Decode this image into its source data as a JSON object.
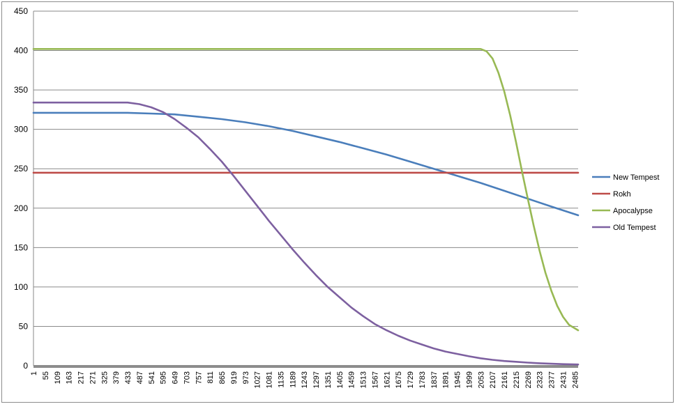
{
  "chart_data": {
    "type": "line",
    "title": "",
    "xlabel": "",
    "ylabel": "",
    "ylim": [
      0,
      450
    ],
    "xlim": [
      1,
      2500
    ],
    "yticks": [
      0,
      50,
      100,
      150,
      200,
      250,
      300,
      350,
      400,
      450
    ],
    "xticks": [
      1,
      55,
      109,
      163,
      217,
      271,
      325,
      379,
      433,
      487,
      541,
      595,
      649,
      703,
      757,
      811,
      865,
      919,
      973,
      1027,
      1081,
      1135,
      1189,
      1243,
      1297,
      1351,
      1405,
      1459,
      1513,
      1567,
      1621,
      1675,
      1729,
      1783,
      1837,
      1891,
      1945,
      1999,
      2053,
      2107,
      2161,
      2215,
      2269,
      2323,
      2377,
      2431,
      2485
    ],
    "grid": true,
    "legend_position": "right",
    "series": [
      {
        "name": "New Tempest",
        "color": "#4a7ebb",
        "x": [
          1,
          433,
          541,
          649,
          757,
          865,
          973,
          1081,
          1189,
          1297,
          1405,
          1513,
          1621,
          1729,
          1837,
          1945,
          2053,
          2161,
          2269,
          2377,
          2500
        ],
        "y": [
          321,
          321,
          320,
          319,
          316,
          313,
          309,
          304,
          298,
          291,
          284,
          276,
          268,
          259,
          250,
          241,
          232,
          222,
          212,
          202,
          191
        ]
      },
      {
        "name": "Rokh",
        "color": "#be4b48",
        "x": [
          1,
          2500
        ],
        "y": [
          245,
          245
        ]
      },
      {
        "name": "Apocalypse",
        "color": "#98b954",
        "x": [
          1,
          2053,
          2080,
          2107,
          2134,
          2161,
          2188,
          2215,
          2242,
          2269,
          2296,
          2323,
          2350,
          2377,
          2404,
          2431,
          2458,
          2500
        ],
        "y": [
          402,
          402,
          399,
          390,
          372,
          348,
          318,
          284,
          247,
          212,
          178,
          146,
          118,
          95,
          76,
          62,
          52,
          45
        ]
      },
      {
        "name": "Old Tempest",
        "color": "#7d60a0",
        "x": [
          1,
          433,
          487,
          541,
          595,
          649,
          703,
          757,
          811,
          865,
          919,
          973,
          1027,
          1081,
          1135,
          1189,
          1243,
          1297,
          1351,
          1405,
          1459,
          1513,
          1567,
          1621,
          1675,
          1729,
          1783,
          1837,
          1891,
          1945,
          1999,
          2053,
          2107,
          2161,
          2215,
          2269,
          2323,
          2377,
          2431,
          2500
        ],
        "y": [
          334,
          334,
          332,
          328,
          322,
          313,
          302,
          290,
          275,
          259,
          241,
          222,
          203,
          184,
          166,
          148,
          131,
          115,
          100,
          87,
          74,
          63,
          53,
          45,
          38,
          32,
          27,
          22,
          18,
          15,
          12,
          9.5,
          7.5,
          6,
          5,
          4,
          3.2,
          2.6,
          2,
          1.6
        ]
      }
    ]
  }
}
